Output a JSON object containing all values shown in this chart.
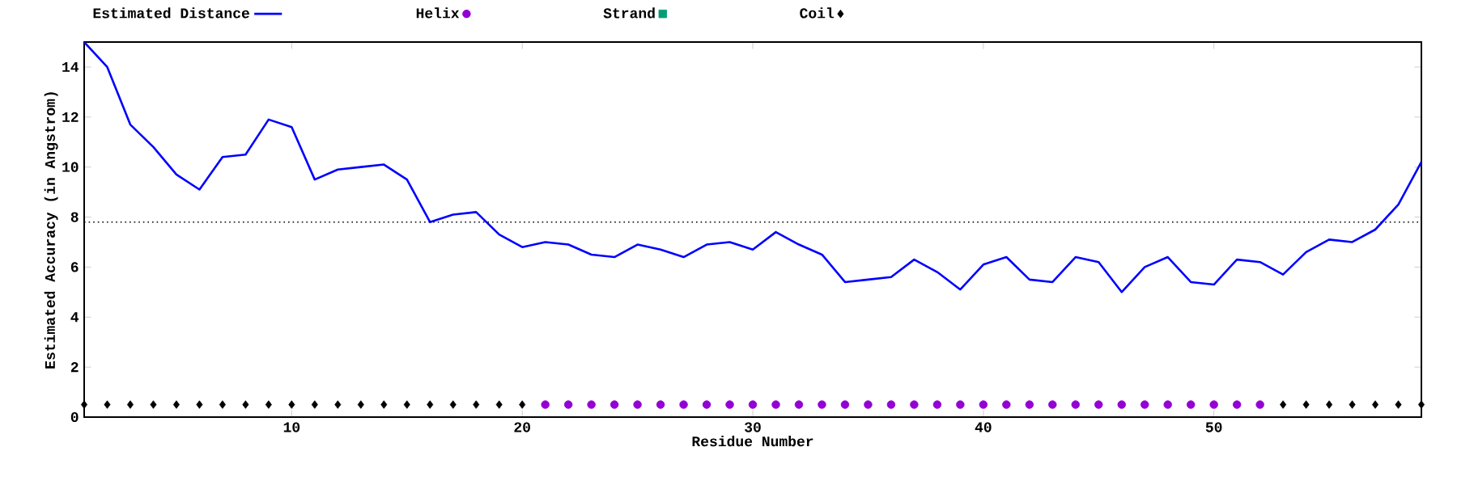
{
  "chart_data": {
    "type": "line",
    "xlabel": "Residue Number",
    "ylabel": "Estimated Accuracy (in Angstrom)",
    "xlim": [
      1,
      59
    ],
    "ylim": [
      0,
      15
    ],
    "xticks": [
      10,
      20,
      30,
      40,
      50
    ],
    "yticks": [
      0,
      2,
      4,
      6,
      8,
      10,
      12,
      14
    ],
    "grid": false,
    "legend": "top",
    "ref_lines": [
      {
        "axis": "y",
        "value": 7.8,
        "color": "#000000",
        "line_style": "dotted"
      }
    ],
    "series": [
      {
        "name": "Estimated Distance",
        "color": "#0000ff",
        "marker": "none",
        "line_style": "solid",
        "x": [
          1,
          2,
          3,
          4,
          5,
          6,
          7,
          8,
          9,
          10,
          11,
          12,
          13,
          14,
          15,
          16,
          17,
          18,
          19,
          20,
          21,
          22,
          23,
          24,
          25,
          26,
          27,
          28,
          29,
          30,
          31,
          32,
          33,
          34,
          35,
          36,
          37,
          38,
          39,
          40,
          41,
          42,
          43,
          44,
          45,
          46,
          47,
          48,
          49,
          50,
          51,
          52,
          53,
          54,
          55,
          56,
          57,
          58,
          59
        ],
        "values": [
          15.0,
          14.0,
          11.7,
          10.8,
          9.7,
          9.1,
          10.4,
          10.5,
          11.9,
          11.6,
          9.5,
          9.9,
          10.0,
          10.1,
          9.5,
          7.8,
          8.1,
          8.2,
          7.3,
          6.8,
          7.0,
          6.9,
          6.5,
          6.4,
          6.9,
          6.7,
          6.4,
          6.9,
          7.0,
          6.7,
          7.4,
          6.9,
          6.5,
          5.4,
          5.5,
          5.6,
          6.3,
          5.8,
          5.1,
          6.1,
          6.4,
          5.5,
          5.4,
          6.4,
          6.2,
          5.0,
          6.0,
          6.4,
          5.4,
          5.3,
          6.3,
          6.2,
          5.7,
          6.6,
          7.1,
          7.0,
          7.5,
          8.5,
          10.2
        ]
      },
      {
        "name": "Helix",
        "type": "scatter",
        "color": "#9400d3",
        "marker": "circle",
        "x": [
          21,
          22,
          23,
          24,
          25,
          26,
          27,
          28,
          29,
          30,
          31,
          32,
          33,
          34,
          35,
          36,
          37,
          38,
          39,
          40,
          41,
          42,
          43,
          44,
          45,
          46,
          47,
          48,
          49,
          50,
          51,
          52
        ],
        "values": [
          0.5,
          0.5,
          0.5,
          0.5,
          0.5,
          0.5,
          0.5,
          0.5,
          0.5,
          0.5,
          0.5,
          0.5,
          0.5,
          0.5,
          0.5,
          0.5,
          0.5,
          0.5,
          0.5,
          0.5,
          0.5,
          0.5,
          0.5,
          0.5,
          0.5,
          0.5,
          0.5,
          0.5,
          0.5,
          0.5,
          0.5,
          0.5
        ]
      },
      {
        "name": "Strand",
        "type": "scatter",
        "color": "#009e73",
        "marker": "square"
      },
      {
        "name": "Coil",
        "type": "scatter",
        "color": "#000000",
        "marker": "diamond",
        "x": [
          1,
          2,
          3,
          4,
          5,
          6,
          7,
          8,
          9,
          10,
          11,
          12,
          13,
          14,
          15,
          16,
          17,
          18,
          19,
          20,
          53,
          54,
          55,
          56,
          57,
          58,
          59
        ],
        "values": [
          0.5,
          0.5,
          0.5,
          0.5,
          0.5,
          0.5,
          0.5,
          0.5,
          0.5,
          0.5,
          0.5,
          0.5,
          0.5,
          0.5,
          0.5,
          0.5,
          0.5,
          0.5,
          0.5,
          0.5,
          0.5,
          0.5,
          0.5,
          0.5,
          0.5,
          0.5,
          0.5
        ]
      }
    ]
  }
}
